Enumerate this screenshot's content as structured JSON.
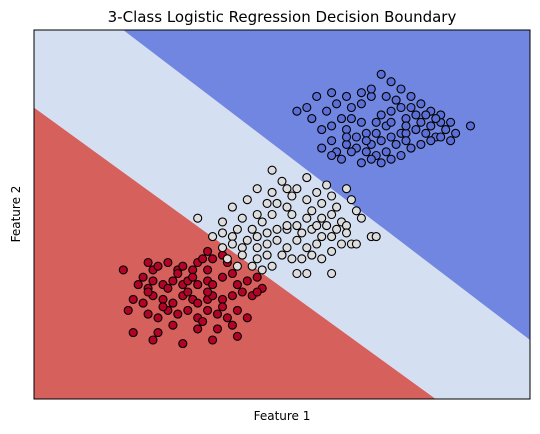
{
  "chart_data": {
    "type": "scatter",
    "title": "3-Class Logistic Regression Decision Boundary",
    "xlabel": "Feature 1",
    "ylabel": "Feature 2",
    "xlim": [
      0,
      100
    ],
    "ylim": [
      0,
      100
    ],
    "xticks": [],
    "yticks": [],
    "grid": false,
    "regions": [
      {
        "class": 0,
        "color": "#d6605b",
        "polygon": [
          [
            0,
            79
          ],
          [
            0,
            0
          ],
          [
            81,
            0
          ]
        ]
      },
      {
        "class": 1,
        "color": "#d5dff2",
        "polygon": [
          [
            0,
            79
          ],
          [
            81,
            0
          ],
          [
            100,
            0
          ],
          [
            100,
            16
          ],
          [
            18,
            100
          ],
          [
            0,
            100
          ]
        ]
      },
      {
        "class": 2,
        "color": "#7086e0",
        "polygon": [
          [
            18,
            100
          ],
          [
            100,
            16
          ],
          [
            100,
            100
          ]
        ]
      }
    ],
    "series": [
      {
        "class": 0,
        "color": "#b40426",
        "points": [
          [
            18,
            35
          ],
          [
            22,
            33
          ],
          [
            24,
            35
          ],
          [
            23,
            37
          ],
          [
            25,
            36
          ],
          [
            27,
            37
          ],
          [
            29,
            35
          ],
          [
            30,
            36
          ],
          [
            32,
            35
          ],
          [
            33,
            37
          ],
          [
            35,
            35
          ],
          [
            34,
            38
          ],
          [
            35,
            40
          ],
          [
            36,
            38
          ],
          [
            38,
            39
          ],
          [
            21,
            31
          ],
          [
            23,
            30
          ],
          [
            24,
            32
          ],
          [
            26,
            31
          ],
          [
            28,
            32
          ],
          [
            30,
            31
          ],
          [
            31,
            32
          ],
          [
            33,
            31
          ],
          [
            35,
            32
          ],
          [
            36,
            31
          ],
          [
            38,
            33
          ],
          [
            40,
            34
          ],
          [
            41,
            31
          ],
          [
            43,
            32
          ],
          [
            45,
            33
          ],
          [
            20,
            27
          ],
          [
            22,
            26
          ],
          [
            24,
            28
          ],
          [
            26,
            27
          ],
          [
            28,
            26
          ],
          [
            30,
            28
          ],
          [
            32,
            27
          ],
          [
            33,
            26
          ],
          [
            35,
            27
          ],
          [
            36,
            28
          ],
          [
            38,
            27
          ],
          [
            40,
            28
          ],
          [
            42,
            29
          ],
          [
            44,
            28
          ],
          [
            46,
            30
          ],
          [
            23,
            23
          ],
          [
            25,
            22
          ],
          [
            27,
            24
          ],
          [
            29,
            23
          ],
          [
            31,
            24
          ],
          [
            33,
            22
          ],
          [
            35,
            24
          ],
          [
            37,
            23
          ],
          [
            39,
            22
          ],
          [
            41,
            24
          ],
          [
            43,
            22
          ],
          [
            40,
            20
          ],
          [
            37,
            19
          ],
          [
            33,
            19
          ],
          [
            28,
            20
          ],
          [
            25,
            18
          ],
          [
            20,
            18
          ],
          [
            30,
            15
          ],
          [
            36,
            16
          ],
          [
            41,
            17
          ],
          [
            24,
            16
          ],
          [
            34,
            21
          ],
          [
            38,
            25
          ],
          [
            31,
            29
          ],
          [
            27,
            30
          ],
          [
            19,
            24
          ],
          [
            32,
            33
          ],
          [
            29,
            34
          ],
          [
            45,
            29
          ],
          [
            39,
            37
          ],
          [
            23,
            29
          ],
          [
            26,
            25
          ],
          [
            35,
            29
          ]
        ]
      },
      {
        "class": 1,
        "color": "#dddddd",
        "points": [
          [
            33,
            49
          ],
          [
            38,
            48
          ],
          [
            40,
            52
          ],
          [
            43,
            54
          ],
          [
            42,
            49
          ],
          [
            45,
            50
          ],
          [
            47,
            53
          ],
          [
            48,
            56
          ],
          [
            45,
            57
          ],
          [
            50,
            59
          ],
          [
            49,
            53
          ],
          [
            51,
            52
          ],
          [
            52,
            55
          ],
          [
            53,
            57
          ],
          [
            55,
            54
          ],
          [
            52,
            50
          ],
          [
            55,
            49
          ],
          [
            56,
            51
          ],
          [
            58,
            53
          ],
          [
            58,
            49
          ],
          [
            60,
            50
          ],
          [
            61,
            52
          ],
          [
            62,
            48
          ],
          [
            63,
            47
          ],
          [
            66,
            49
          ],
          [
            65,
            51
          ],
          [
            64,
            54
          ],
          [
            60,
            55
          ],
          [
            57,
            56
          ],
          [
            59,
            58
          ],
          [
            63,
            57
          ],
          [
            55,
            60
          ],
          [
            51,
            57
          ],
          [
            48,
            50
          ],
          [
            46,
            48
          ],
          [
            44,
            46
          ],
          [
            41,
            46
          ],
          [
            40,
            44
          ],
          [
            43,
            43
          ],
          [
            45,
            44
          ],
          [
            47,
            45
          ],
          [
            49,
            46
          ],
          [
            51,
            46
          ],
          [
            53,
            47
          ],
          [
            54,
            45
          ],
          [
            56,
            46
          ],
          [
            58,
            44
          ],
          [
            57,
            42
          ],
          [
            55,
            41
          ],
          [
            53,
            43
          ],
          [
            51,
            41
          ],
          [
            49,
            43
          ],
          [
            47,
            42
          ],
          [
            45,
            41
          ],
          [
            42,
            41
          ],
          [
            40,
            42
          ],
          [
            38,
            41
          ],
          [
            38,
            45
          ],
          [
            36,
            44
          ],
          [
            42,
            39
          ],
          [
            45,
            38
          ],
          [
            47,
            39
          ],
          [
            50,
            39
          ],
          [
            52,
            38
          ],
          [
            54,
            38
          ],
          [
            56,
            39
          ],
          [
            58,
            38
          ],
          [
            60,
            40
          ],
          [
            62,
            42
          ],
          [
            60,
            44
          ],
          [
            61,
            46
          ],
          [
            59,
            47
          ],
          [
            57,
            47
          ],
          [
            63,
            45
          ],
          [
            64,
            42
          ],
          [
            48,
            36
          ],
          [
            53,
            34
          ],
          [
            55,
            34
          ],
          [
            60,
            34
          ],
          [
            65,
            42
          ],
          [
            68,
            44
          ],
          [
            69,
            44
          ],
          [
            46,
            35
          ],
          [
            44,
            36
          ],
          [
            39,
            38
          ],
          [
            41,
            36
          ],
          [
            48,
            62
          ],
          [
            51,
            47
          ]
        ]
      },
      {
        "class": 2,
        "color": "#5b6fd6",
        "points": [
          [
            60,
            70
          ],
          [
            63,
            73
          ],
          [
            65,
            71
          ],
          [
            67,
            72
          ],
          [
            68,
            69
          ],
          [
            70,
            70
          ],
          [
            72,
            71
          ],
          [
            74,
            72
          ],
          [
            71,
            74
          ],
          [
            69,
            75
          ],
          [
            66,
            75
          ],
          [
            64,
            76
          ],
          [
            62,
            76
          ],
          [
            60,
            74
          ],
          [
            58,
            73
          ],
          [
            70,
            77
          ],
          [
            72,
            78
          ],
          [
            74,
            79
          ],
          [
            76,
            79
          ],
          [
            73,
            81
          ],
          [
            71,
            82
          ],
          [
            68,
            82
          ],
          [
            66,
            80
          ],
          [
            64,
            79
          ],
          [
            75,
            76
          ],
          [
            77,
            77
          ],
          [
            78,
            75
          ],
          [
            80,
            74
          ],
          [
            82,
            75
          ],
          [
            83,
            73
          ],
          [
            81,
            71
          ],
          [
            79,
            72
          ],
          [
            77,
            73
          ],
          [
            75,
            72
          ],
          [
            73,
            69
          ],
          [
            71,
            67
          ],
          [
            69,
            66
          ],
          [
            67,
            67
          ],
          [
            65,
            68
          ],
          [
            63,
            69
          ],
          [
            61,
            67
          ],
          [
            62,
            65
          ],
          [
            66,
            64
          ],
          [
            68,
            65
          ],
          [
            70,
            64
          ],
          [
            72,
            65
          ],
          [
            74,
            66
          ],
          [
            76,
            68
          ],
          [
            78,
            69
          ],
          [
            80,
            70
          ],
          [
            82,
            71
          ],
          [
            84,
            70
          ],
          [
            85,
            72
          ],
          [
            84,
            75
          ],
          [
            82,
            77
          ],
          [
            80,
            78
          ],
          [
            78,
            80
          ],
          [
            76,
            82
          ],
          [
            74,
            84
          ],
          [
            72,
            86
          ],
          [
            70,
            88
          ],
          [
            68,
            84
          ],
          [
            66,
            83
          ],
          [
            63,
            82
          ],
          [
            60,
            83
          ],
          [
            57,
            82
          ],
          [
            55,
            79
          ],
          [
            53,
            78
          ],
          [
            59,
            78
          ],
          [
            61,
            80
          ],
          [
            56,
            76
          ],
          [
            58,
            68
          ],
          [
            60,
            66
          ],
          [
            64,
            67
          ],
          [
            67,
            70
          ],
          [
            72,
            75
          ],
          [
            75,
            74
          ],
          [
            81,
            76
          ],
          [
            88,
            74
          ],
          [
            75,
            70
          ],
          [
            79,
            77
          ],
          [
            63,
            71
          ],
          [
            69,
            72
          ]
        ]
      }
    ]
  }
}
